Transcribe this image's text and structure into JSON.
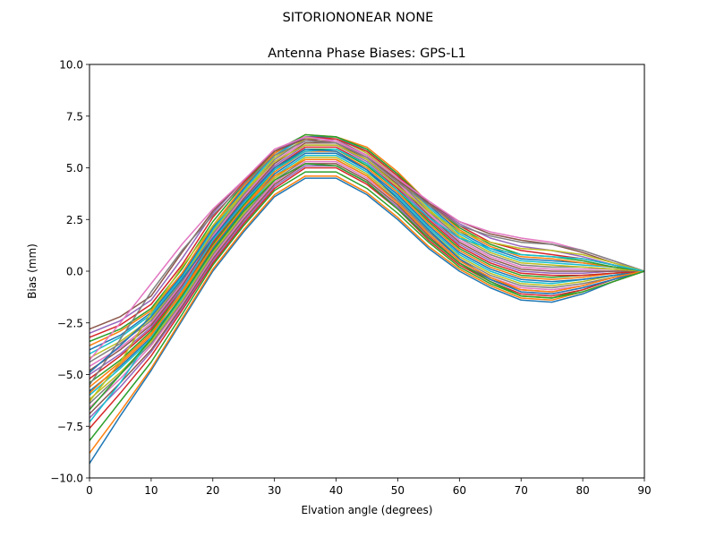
{
  "figure": {
    "suptitle": "SITORIONONEAR   NONE"
  },
  "chart_data": {
    "type": "line",
    "title": "Antenna Phase Biases: GPS-L1",
    "xlabel": "Elvation angle (degrees)",
    "ylabel": "Bias (mm)",
    "xlim": [
      0,
      90
    ],
    "ylim": [
      -10,
      10
    ],
    "xticks": [
      0,
      10,
      20,
      30,
      40,
      50,
      60,
      70,
      80,
      90
    ],
    "yticks": [
      -10.0,
      -7.5,
      -5.0,
      -2.5,
      0.0,
      2.5,
      5.0,
      7.5,
      10.0
    ],
    "xtick_labels": [
      "0",
      "10",
      "20",
      "30",
      "40",
      "50",
      "60",
      "70",
      "80",
      "90"
    ],
    "ytick_labels": [
      "−10.0",
      "−7.5",
      "−5.0",
      "−2.5",
      "0.0",
      "2.5",
      "5.0",
      "7.5",
      "10.0"
    ],
    "grid": false,
    "legend": "none",
    "x": [
      0,
      5,
      10,
      15,
      20,
      25,
      30,
      35,
      40,
      45,
      50,
      55,
      60,
      65,
      70,
      75,
      80,
      85,
      90
    ],
    "colors": [
      "#1f77b4",
      "#ff7f0e",
      "#2ca02c",
      "#d62728",
      "#9467bd",
      "#8c564b",
      "#e377c2",
      "#7f7f7f",
      "#bcbd22",
      "#17becf"
    ],
    "series": [
      {
        "values": [
          -9.3,
          -7.0,
          -4.8,
          -2.4,
          0.0,
          1.9,
          3.6,
          4.5,
          4.5,
          3.7,
          2.5,
          1.1,
          0.0,
          -0.8,
          -1.4,
          -1.5,
          -1.1,
          -0.5,
          0.0
        ]
      },
      {
        "values": [
          -8.8,
          -6.8,
          -4.7,
          -2.3,
          0.1,
          2.0,
          3.7,
          4.6,
          4.6,
          3.8,
          2.6,
          1.2,
          0.1,
          -0.7,
          -1.3,
          -1.4,
          -1.0,
          -0.5,
          0.0
        ]
      },
      {
        "values": [
          -8.2,
          -6.3,
          -4.4,
          -2.1,
          0.3,
          2.2,
          3.9,
          4.8,
          4.8,
          4.0,
          2.8,
          1.4,
          0.2,
          -0.6,
          -1.2,
          -1.3,
          -0.9,
          -0.4,
          0.0
        ]
      },
      {
        "values": [
          -7.6,
          -5.9,
          -4.1,
          -1.9,
          0.4,
          2.3,
          4.0,
          5.0,
          5.0,
          4.2,
          3.0,
          1.5,
          0.3,
          -0.5,
          -1.1,
          -1.2,
          -0.9,
          -0.4,
          0.0
        ]
      },
      {
        "values": [
          -7.1,
          -5.6,
          -3.9,
          -1.8,
          0.5,
          2.4,
          4.1,
          5.1,
          5.1,
          4.3,
          3.1,
          1.6,
          0.4,
          -0.4,
          -1.0,
          -1.1,
          -0.8,
          -0.4,
          0.0
        ]
      },
      {
        "values": [
          -6.9,
          -5.4,
          -3.8,
          -1.7,
          0.6,
          2.5,
          4.2,
          5.2,
          5.2,
          4.4,
          3.2,
          1.7,
          0.4,
          -0.4,
          -0.9,
          -1.0,
          -0.7,
          -0.3,
          0.0
        ]
      },
      {
        "values": [
          -6.6,
          -5.2,
          -3.6,
          -1.6,
          0.7,
          2.6,
          4.3,
          5.3,
          5.3,
          4.5,
          3.3,
          1.8,
          0.5,
          -0.3,
          -0.8,
          -0.9,
          -0.7,
          -0.3,
          0.0
        ]
      },
      {
        "values": [
          -6.4,
          -5.0,
          -3.5,
          -1.5,
          0.8,
          2.7,
          4.4,
          5.4,
          5.4,
          4.6,
          3.4,
          1.9,
          0.6,
          -0.2,
          -0.7,
          -0.8,
          -0.6,
          -0.3,
          0.0
        ]
      },
      {
        "values": [
          -6.2,
          -4.9,
          -3.4,
          -1.4,
          0.9,
          2.8,
          4.5,
          5.5,
          5.5,
          4.7,
          3.5,
          2.0,
          0.7,
          -0.1,
          -0.6,
          -0.7,
          -0.5,
          -0.2,
          0.0
        ]
      },
      {
        "values": [
          -6.0,
          -4.7,
          -3.3,
          -1.3,
          1.0,
          2.9,
          4.6,
          5.6,
          5.6,
          4.8,
          3.6,
          2.1,
          0.8,
          0.0,
          -0.5,
          -0.6,
          -0.4,
          -0.2,
          0.0
        ]
      },
      {
        "values": [
          -5.8,
          -4.6,
          -3.2,
          -1.2,
          1.1,
          3.0,
          4.7,
          5.7,
          5.7,
          4.9,
          3.7,
          2.2,
          0.9,
          0.1,
          -0.4,
          -0.5,
          -0.4,
          -0.2,
          0.0
        ]
      },
      {
        "values": [
          -5.6,
          -4.4,
          -3.0,
          -1.1,
          1.2,
          3.1,
          4.8,
          5.8,
          5.8,
          5.0,
          3.8,
          2.3,
          1.0,
          0.2,
          -0.3,
          -0.4,
          -0.3,
          -0.1,
          0.0
        ]
      },
      {
        "values": [
          -5.4,
          -4.3,
          -2.9,
          -1.0,
          1.3,
          3.2,
          4.9,
          5.9,
          5.9,
          5.1,
          3.9,
          2.4,
          1.1,
          0.3,
          -0.2,
          -0.3,
          -0.2,
          -0.1,
          0.0
        ]
      },
      {
        "values": [
          -5.2,
          -4.1,
          -2.8,
          -0.9,
          1.4,
          3.3,
          5.0,
          6.0,
          6.0,
          5.2,
          4.0,
          2.5,
          1.2,
          0.4,
          -0.1,
          -0.2,
          -0.2,
          -0.1,
          0.0
        ]
      },
      {
        "values": [
          -5.0,
          -4.0,
          -2.7,
          -0.8,
          1.5,
          3.4,
          5.1,
          6.1,
          6.1,
          5.3,
          4.1,
          2.6,
          1.3,
          0.5,
          0.0,
          -0.1,
          -0.1,
          0.0,
          0.0
        ]
      },
      {
        "values": [
          -4.8,
          -3.8,
          -2.6,
          -0.7,
          1.6,
          3.5,
          5.2,
          6.2,
          6.2,
          5.4,
          4.2,
          2.7,
          1.4,
          0.6,
          0.1,
          0.0,
          0.0,
          0.0,
          0.0
        ]
      },
      {
        "values": [
          -4.6,
          -3.7,
          -2.5,
          -0.6,
          1.7,
          3.6,
          5.3,
          6.3,
          6.3,
          5.5,
          4.3,
          2.8,
          1.5,
          0.7,
          0.2,
          0.1,
          0.1,
          0.1,
          0.0
        ]
      },
      {
        "values": [
          -4.4,
          -3.5,
          -2.4,
          -0.5,
          1.8,
          3.7,
          5.4,
          6.4,
          6.4,
          5.6,
          4.4,
          2.9,
          1.6,
          0.8,
          0.3,
          0.2,
          0.2,
          0.1,
          0.0
        ]
      },
      {
        "values": [
          -4.2,
          -3.4,
          -2.3,
          -0.4,
          1.9,
          3.8,
          5.5,
          6.4,
          6.5,
          5.7,
          4.5,
          3.0,
          1.7,
          0.9,
          0.4,
          0.3,
          0.2,
          0.1,
          0.0
        ]
      },
      {
        "values": [
          -4.0,
          -3.2,
          -2.1,
          -0.3,
          2.0,
          3.9,
          5.6,
          6.5,
          6.5,
          5.8,
          4.6,
          3.1,
          1.8,
          1.0,
          0.5,
          0.4,
          0.3,
          0.2,
          0.0
        ]
      },
      {
        "values": [
          -3.8,
          -3.1,
          -2.0,
          -0.2,
          2.1,
          4.0,
          5.7,
          6.5,
          6.5,
          5.9,
          4.7,
          3.2,
          1.9,
          1.1,
          0.6,
          0.5,
          0.4,
          0.2,
          0.0
        ]
      },
      {
        "values": [
          -3.6,
          -2.9,
          -1.9,
          -0.1,
          2.2,
          4.1,
          5.7,
          6.6,
          6.5,
          6.0,
          4.8,
          3.3,
          2.0,
          1.2,
          0.7,
          0.6,
          0.4,
          0.2,
          0.0
        ]
      },
      {
        "values": [
          -3.4,
          -2.8,
          -1.8,
          0.1,
          2.4,
          4.2,
          5.8,
          6.6,
          6.5,
          5.9,
          4.7,
          3.3,
          2.1,
          1.3,
          0.8,
          0.7,
          0.5,
          0.2,
          0.0
        ]
      },
      {
        "values": [
          -3.2,
          -2.6,
          -1.6,
          0.3,
          2.6,
          4.3,
          5.8,
          6.5,
          6.4,
          5.8,
          4.6,
          3.3,
          2.2,
          1.4,
          1.0,
          0.8,
          0.6,
          0.3,
          0.0
        ]
      },
      {
        "values": [
          -3.0,
          -2.4,
          -1.4,
          0.6,
          2.8,
          4.4,
          5.8,
          6.5,
          6.3,
          5.6,
          4.5,
          3.3,
          2.3,
          1.6,
          1.2,
          1.0,
          0.7,
          0.3,
          0.0
        ]
      },
      {
        "values": [
          -2.8,
          -2.2,
          -1.2,
          0.9,
          2.9,
          4.4,
          5.8,
          6.4,
          6.2,
          5.5,
          4.4,
          3.3,
          2.4,
          1.8,
          1.5,
          1.3,
          0.9,
          0.4,
          0.0
        ]
      },
      {
        "values": [
          -4.3,
          -2.5,
          -0.6,
          1.3,
          3.0,
          4.4,
          5.9,
          6.5,
          6.3,
          5.6,
          4.5,
          3.4,
          2.4,
          1.9,
          1.6,
          1.4,
          1.0,
          0.5,
          0.0
        ]
      },
      {
        "values": [
          -5.5,
          -3.3,
          -1.0,
          1.0,
          2.7,
          4.2,
          5.6,
          6.3,
          6.2,
          5.5,
          4.3,
          3.2,
          2.2,
          1.7,
          1.4,
          1.3,
          1.0,
          0.5,
          0.0
        ]
      },
      {
        "values": [
          -6.3,
          -4.4,
          -2.0,
          0.2,
          2.2,
          3.8,
          5.3,
          6.1,
          6.1,
          5.4,
          4.1,
          2.9,
          1.9,
          1.4,
          1.1,
          1.0,
          0.8,
          0.4,
          0.0
        ]
      },
      {
        "values": [
          -7.3,
          -5.4,
          -3.2,
          -0.9,
          1.5,
          3.3,
          4.9,
          5.8,
          5.9,
          5.2,
          3.9,
          2.6,
          1.6,
          1.1,
          0.8,
          0.7,
          0.6,
          0.3,
          0.0
        ]
      },
      {
        "values": [
          -4.9,
          -3.6,
          -2.2,
          -0.4,
          1.6,
          3.4,
          5.0,
          5.9,
          5.8,
          4.9,
          3.5,
          2.0,
          0.6,
          -0.4,
          -1.0,
          -1.1,
          -0.8,
          -0.4,
          0.0
        ]
      },
      {
        "values": [
          -5.9,
          -4.5,
          -3.1,
          -1.0,
          1.2,
          3.1,
          4.6,
          5.4,
          5.4,
          4.6,
          3.3,
          1.8,
          0.5,
          -0.3,
          -0.9,
          -1.0,
          -0.7,
          -0.3,
          0.0
        ]
      },
      {
        "values": [
          -6.7,
          -5.0,
          -3.3,
          -1.2,
          1.0,
          2.9,
          4.4,
          5.2,
          5.1,
          4.3,
          3.0,
          1.6,
          0.4,
          -0.5,
          -1.2,
          -1.3,
          -1.0,
          -0.5,
          0.0
        ]
      }
    ]
  }
}
